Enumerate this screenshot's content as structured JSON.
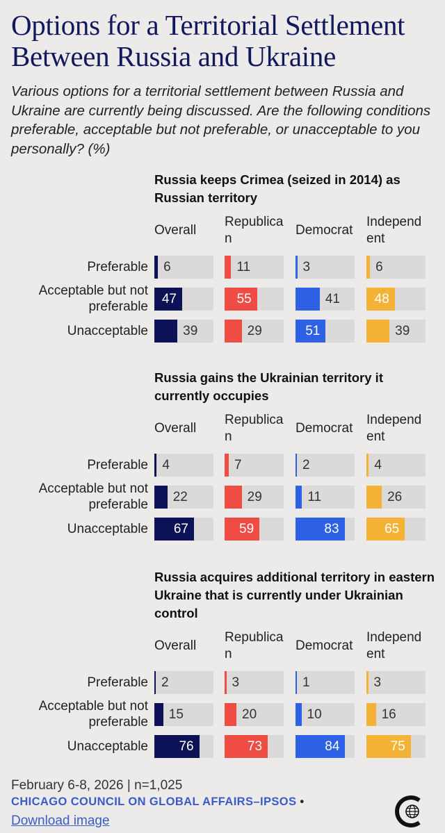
{
  "title": "Options for a Territorial Settlement Between Russia and Ukraine",
  "subtitle": "Various options for a territorial settlement between Russia and Ukraine are currently being discussed. Are the following conditions preferable, acceptable but not preferable, or unacceptable to you personally? (%)",
  "chart_data": {
    "type": "bar",
    "layout": "small-multiples horizontal bar",
    "columns": [
      "Overall",
      "Republican",
      "Democrat",
      "Independent"
    ],
    "column_labels": [
      "Overall",
      "Republica n",
      "Democrat",
      "Independ ent"
    ],
    "column_colors": [
      "#0d1257",
      "#ef4c44",
      "#2f61e6",
      "#f4b336"
    ],
    "categories": [
      "Preferable",
      "Acceptable but not preferable",
      "Unacceptable"
    ],
    "xlim": [
      0,
      100
    ],
    "panels": [
      {
        "title": "Russia keeps Crimea (seized in 2014) as Russian territory",
        "series": [
          {
            "name": "Overall",
            "values": [
              6,
              47,
              39
            ]
          },
          {
            "name": "Republican",
            "values": [
              11,
              55,
              29
            ]
          },
          {
            "name": "Democrat",
            "values": [
              3,
              41,
              51
            ]
          },
          {
            "name": "Independent",
            "values": [
              6,
              48,
              39
            ]
          }
        ]
      },
      {
        "title": "Russia gains the Ukrainian territory it currently occupies",
        "series": [
          {
            "name": "Overall",
            "values": [
              4,
              22,
              67
            ]
          },
          {
            "name": "Republican",
            "values": [
              7,
              29,
              59
            ]
          },
          {
            "name": "Democrat",
            "values": [
              2,
              11,
              83
            ]
          },
          {
            "name": "Independent",
            "values": [
              4,
              26,
              65
            ]
          }
        ]
      },
      {
        "title": "Russia acquires additional territory in eastern Ukraine that is currently under Ukrainian control",
        "series": [
          {
            "name": "Overall",
            "values": [
              2,
              15,
              76
            ]
          },
          {
            "name": "Republican",
            "values": [
              3,
              20,
              73
            ]
          },
          {
            "name": "Democrat",
            "values": [
              1,
              10,
              84
            ]
          },
          {
            "name": "Independent",
            "values": [
              3,
              16,
              75
            ]
          }
        ]
      }
    ]
  },
  "footer": {
    "date_sample": "February 6-8, 2026 | n=1,025",
    "source": "CHICAGO COUNCIL ON GLOBAL AFFAIRS–IPSOS",
    "bullet": "•",
    "download_label": "Download image"
  },
  "logo_icon": "chicago-council-logo-icon"
}
